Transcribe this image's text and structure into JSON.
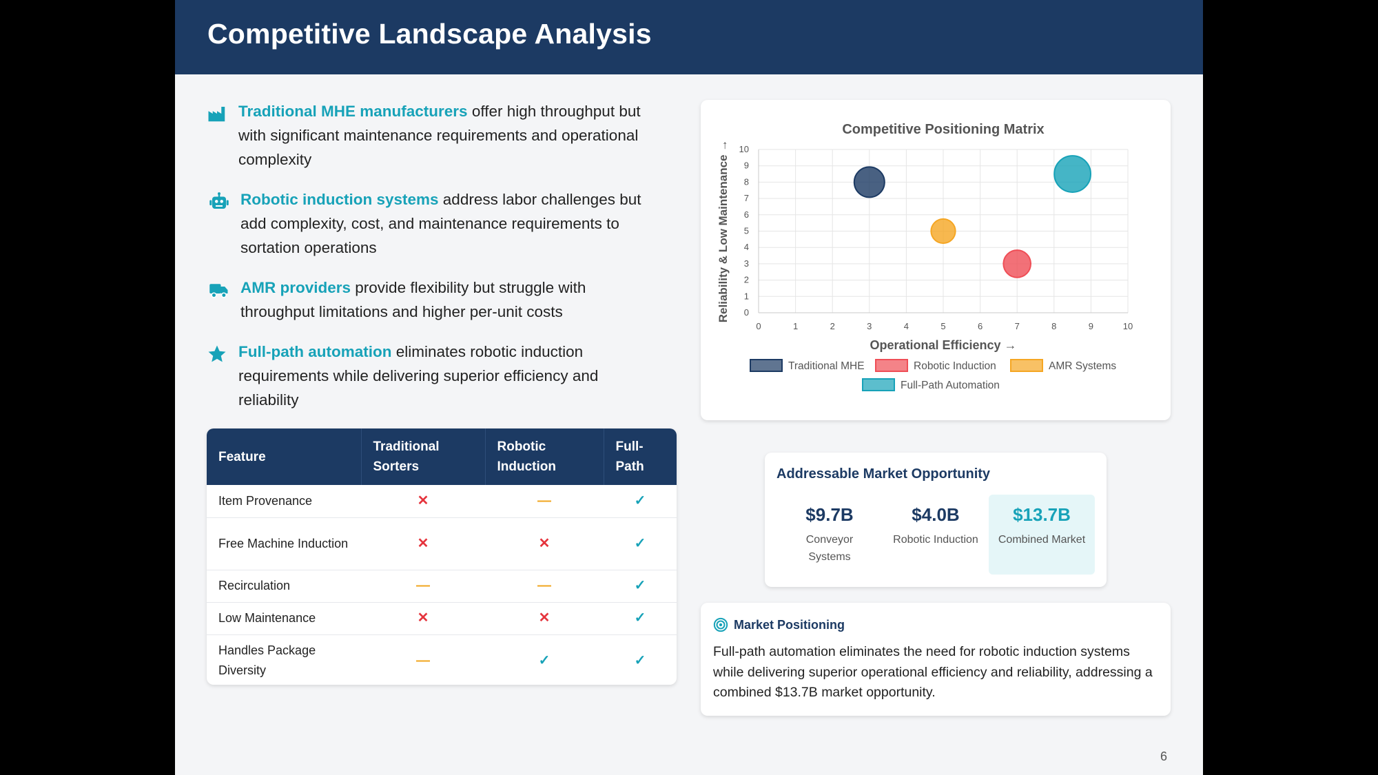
{
  "header": {
    "title": "Competitive Landscape Analysis"
  },
  "bullets": [
    {
      "icon": "factory-icon",
      "highlight": "Traditional MHE manufacturers",
      "text": " offer high throughput but with significant maintenance requirements and operational complexity"
    },
    {
      "icon": "robot-icon",
      "highlight": "Robotic induction systems",
      "text": " address labor challenges but add complexity, cost, and maintenance requirements to sortation operations"
    },
    {
      "icon": "truck-icon",
      "highlight": "AMR providers",
      "text": " provide flexibility but struggle with throughput limitations and higher per-unit costs"
    },
    {
      "icon": "star-icon",
      "highlight": "Full-path automation",
      "text": " eliminates robotic induction requirements while delivering superior efficiency and reliability"
    }
  ],
  "table": {
    "headers": [
      "Feature",
      "Traditional Sorters",
      "Robotic Induction",
      "Full-Path"
    ],
    "rows": [
      {
        "feature": "Item Provenance",
        "marks": [
          "x",
          "dash",
          "check"
        ]
      },
      {
        "feature": "Free Machine Induction",
        "marks": [
          "x",
          "x",
          "check"
        ]
      },
      {
        "feature": "Recirculation",
        "marks": [
          "dash",
          "dash",
          "check"
        ]
      },
      {
        "feature": "Low Maintenance",
        "marks": [
          "x",
          "x",
          "check"
        ]
      },
      {
        "feature": "Handles Package Diversity",
        "marks": [
          "dash",
          "check",
          "check"
        ]
      }
    ],
    "symbols": {
      "x": "✕",
      "dash": "—",
      "check": "✓"
    }
  },
  "chart_data": {
    "type": "scatter",
    "title": "Competitive Positioning Matrix",
    "xlabel": "Operational Efficiency →",
    "ylabel": "Reliability & Low Maintenance →",
    "xlim": [
      0,
      10
    ],
    "ylim": [
      0,
      10
    ],
    "xticks": [
      0,
      1,
      2,
      3,
      4,
      5,
      6,
      7,
      8,
      9,
      10
    ],
    "yticks": [
      0,
      1,
      2,
      3,
      4,
      5,
      6,
      7,
      8,
      9,
      10
    ],
    "grid": true,
    "legend_position": "bottom",
    "series": [
      {
        "name": "Traditional MHE",
        "x": 3,
        "y": 8,
        "size": 1.0,
        "color": "#1c3a63"
      },
      {
        "name": "Robotic Induction",
        "x": 7,
        "y": 3,
        "size": 0.9,
        "color": "#ef4e56"
      },
      {
        "name": "AMR Systems",
        "x": 5,
        "y": 5,
        "size": 0.8,
        "color": "#f5a623"
      },
      {
        "name": "Full-Path Automation",
        "x": 8.5,
        "y": 8.5,
        "size": 1.2,
        "color": "#17a2b8"
      }
    ]
  },
  "market": {
    "title": "Addressable Market Opportunity",
    "stats": [
      {
        "value": "$9.7B",
        "label": "Conveyor Systems"
      },
      {
        "value": "$4.0B",
        "label": "Robotic Induction"
      },
      {
        "value": "$13.7B",
        "label": "Combined Market"
      }
    ]
  },
  "positioning": {
    "title": "Market Positioning",
    "text": "Full-path automation eliminates the need for robotic induction systems while delivering superior operational efficiency and reliability, addressing a combined $13.7B market opportunity."
  },
  "page_number": "6",
  "colors": {
    "navy": "#1c3a63",
    "teal": "#17a2b8",
    "red": "#e5343d",
    "orange": "#f1a51c"
  }
}
